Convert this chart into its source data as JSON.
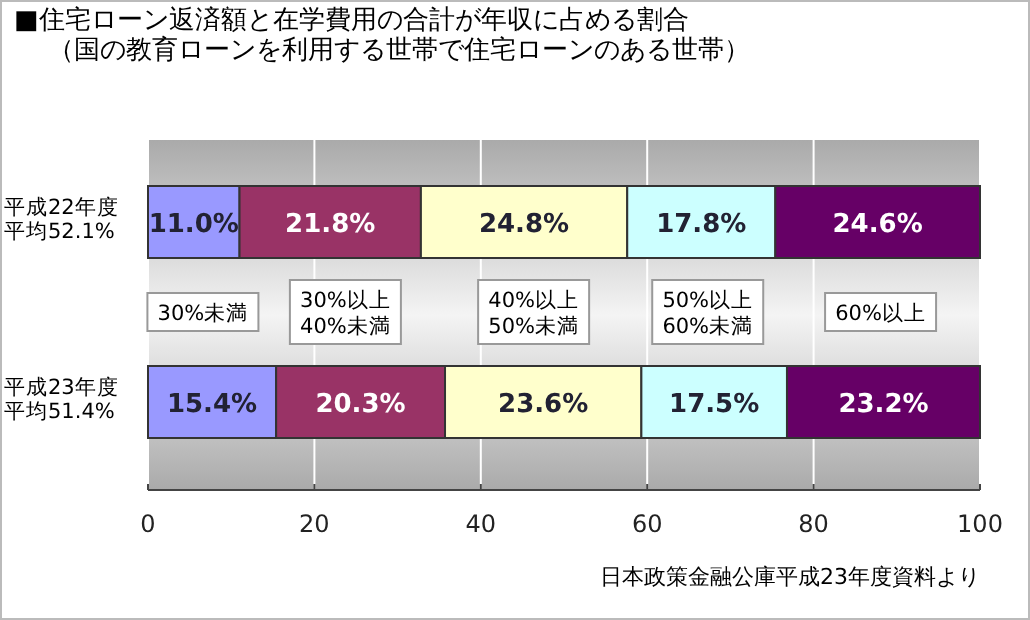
{
  "chart_data": {
    "type": "bar",
    "orientation": "horizontal",
    "stacked": true,
    "title": "■住宅ローン返済額と在学費用の合計が年収に占める割合",
    "subtitle": "（国の教育ローンを利用する世帯で住宅ローンのある世帯）",
    "categories": [
      "平成22年度平均52.1%",
      "平成23年度平均51.4%"
    ],
    "series": [
      {
        "name": "30%未満",
        "color": "#9999ff",
        "values": [
          11.0,
          15.4
        ],
        "value_labels": [
          "11.0%",
          "15.4%"
        ]
      },
      {
        "name": "30%以上\n40%未満",
        "color": "#993366",
        "values": [
          21.8,
          20.3
        ],
        "value_labels": [
          "21.8%",
          "20.3%"
        ]
      },
      {
        "name": "40%以上\n50%未満",
        "color": "#ffffcc",
        "values": [
          24.8,
          23.6
        ],
        "value_labels": [
          "24.8%",
          "23.6%"
        ]
      },
      {
        "name": "50%以上\n60%未満",
        "color": "#ccffff",
        "values": [
          17.8,
          17.5
        ],
        "value_labels": [
          "17.8%",
          "17.5%"
        ]
      },
      {
        "name": "60%以上",
        "color": "#660066",
        "values": [
          24.6,
          23.2
        ],
        "value_labels": [
          "24.6%",
          "23.2%"
        ]
      }
    ],
    "xlim": [
      0,
      100
    ],
    "xticks": [
      0,
      20,
      40,
      60,
      80,
      100
    ],
    "grid": "x",
    "annotations": [
      "日本政策金融公庫平成23年度資料より"
    ]
  }
}
